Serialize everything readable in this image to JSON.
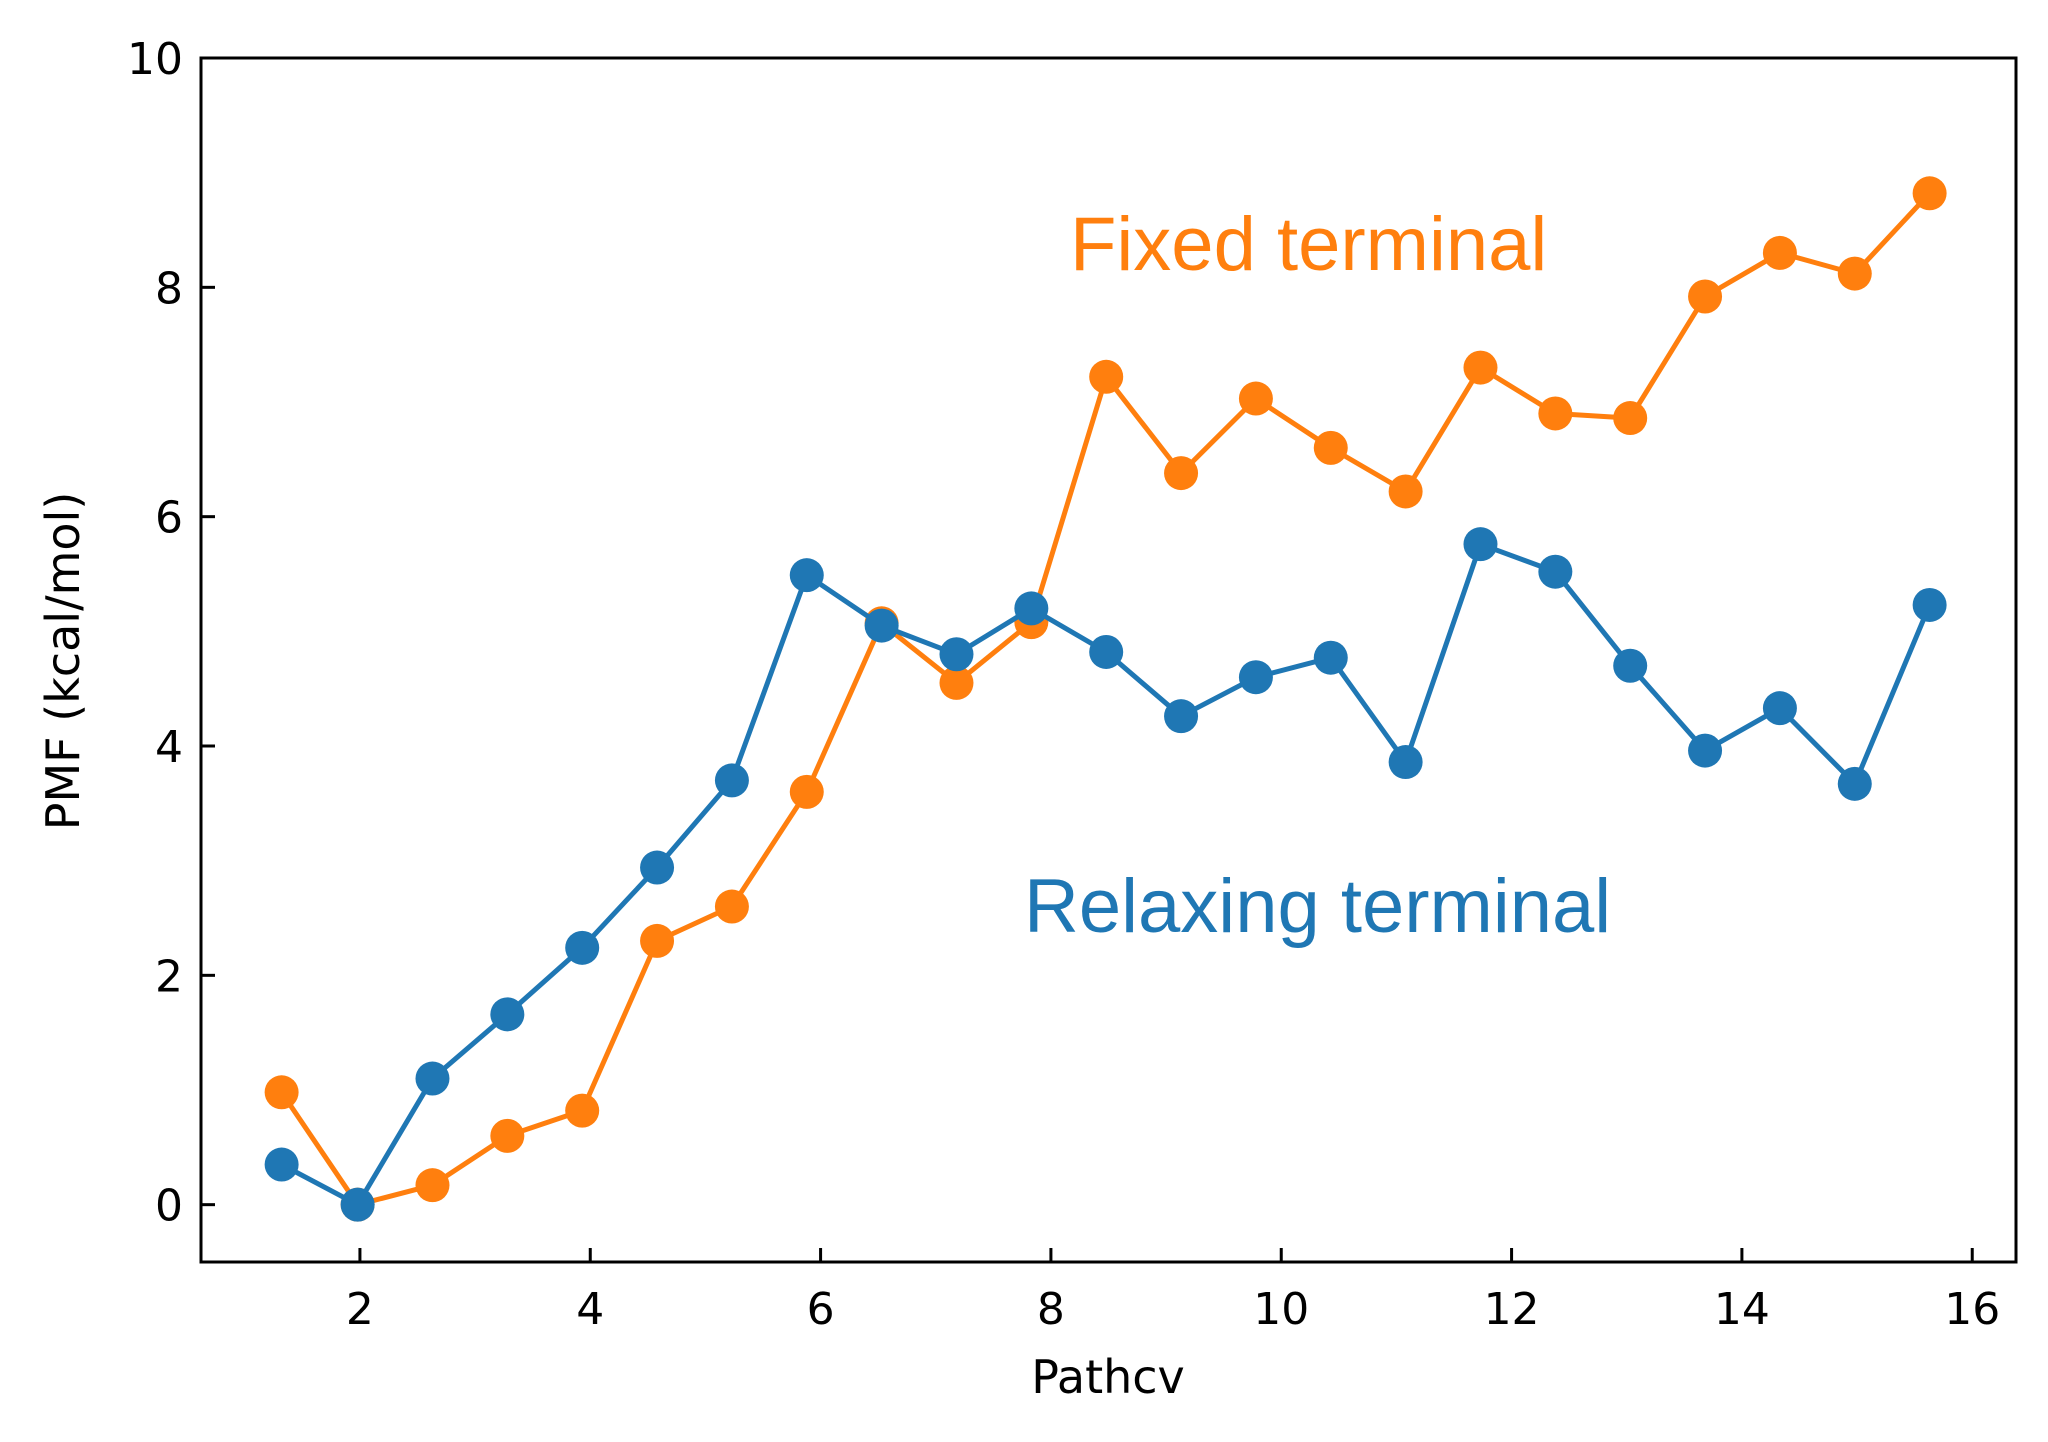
{
  "chart_data": {
    "type": "line",
    "title": "",
    "xlabel": "Pathcv",
    "ylabel": "PMF (kcal/mol)",
    "xlim": [
      0.62,
      16.38
    ],
    "ylim": [
      -0.5,
      10
    ],
    "xticks": [
      2,
      4,
      6,
      8,
      10,
      12,
      14,
      16
    ],
    "yticks": [
      0,
      2,
      4,
      6,
      8,
      10
    ],
    "grid": false,
    "x": [
      1.32,
      1.98,
      2.63,
      3.28,
      3.93,
      4.58,
      5.23,
      5.88,
      6.53,
      7.18,
      7.83,
      8.48,
      9.13,
      9.78,
      10.43,
      11.08,
      11.73,
      12.38,
      13.03,
      13.68,
      14.33,
      14.98,
      15.63
    ],
    "series": [
      {
        "name": "Fixed terminal",
        "color": "#ff7f0e",
        "values": [
          0.98,
          0.0,
          0.17,
          0.6,
          0.82,
          2.3,
          2.6,
          3.6,
          5.07,
          4.55,
          5.08,
          7.22,
          6.38,
          7.03,
          6.6,
          6.22,
          7.3,
          6.9,
          6.86,
          7.92,
          8.3,
          8.12,
          8.82
        ]
      },
      {
        "name": "Relaxing terminal",
        "color": "#1f77b4",
        "values": [
          0.35,
          0.0,
          1.1,
          1.66,
          2.24,
          2.94,
          3.7,
          5.49,
          5.05,
          4.8,
          5.2,
          4.82,
          4.26,
          4.6,
          4.77,
          3.86,
          5.76,
          5.52,
          4.7,
          3.96,
          4.33,
          3.67,
          5.23
        ]
      }
    ]
  }
}
